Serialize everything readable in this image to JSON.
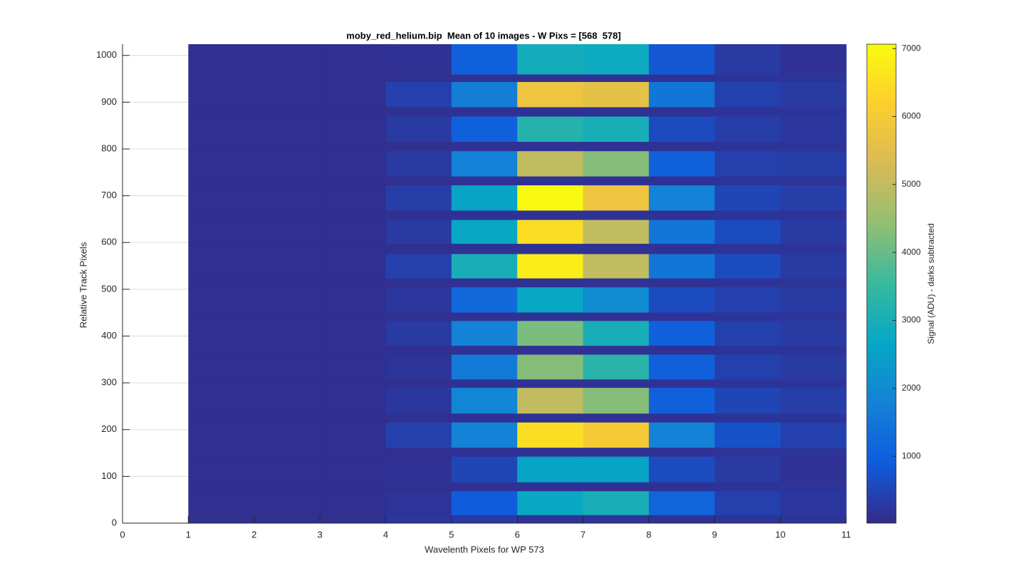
{
  "chart_data": {
    "type": "heatmap",
    "title": "moby_red_helium.bip  Mean of 10 images - W Pixs = [568  578]",
    "x_label": "Wavelenth Pixels for WP 573",
    "y_label": "Relative Track Pixels",
    "colorbar_label": "Signal (ADU) - darks subtracted",
    "xlim": [
      0,
      11
    ],
    "xticks": [
      0,
      1,
      2,
      3,
      4,
      5,
      6,
      7,
      8,
      9,
      10,
      11
    ],
    "ylim": [
      0,
      1024
    ],
    "yticks": [
      0,
      100,
      200,
      300,
      400,
      500,
      600,
      700,
      800,
      900,
      1000
    ],
    "grid": true,
    "x_edges": [
      1,
      2,
      3,
      4,
      5,
      6,
      7,
      8,
      9,
      10,
      11
    ],
    "y_edges": [
      0,
      18,
      69,
      88,
      143,
      162,
      216,
      235,
      290,
      308,
      361,
      380,
      433,
      451,
      505,
      524,
      576,
      598,
      649,
      669,
      723,
      742,
      796,
      816,
      870,
      890,
      944,
      960,
      1024
    ],
    "values": [
      [
        100,
        100,
        100,
        250,
        300,
        200,
        200,
        150,
        200,
        200
      ],
      [
        100,
        100,
        100,
        200,
        900,
        2700,
        3000,
        1100,
        400,
        250
      ],
      [
        100,
        100,
        100,
        120,
        150,
        150,
        150,
        150,
        200,
        200
      ],
      [
        100,
        100,
        100,
        150,
        500,
        2600,
        2600,
        600,
        300,
        150
      ],
      [
        100,
        100,
        100,
        120,
        150,
        150,
        150,
        150,
        200,
        200
      ],
      [
        100,
        100,
        100,
        400,
        1800,
        6500,
        6000,
        1800,
        700,
        400
      ],
      [
        100,
        100,
        100,
        120,
        150,
        150,
        150,
        150,
        200,
        200
      ],
      [
        100,
        100,
        100,
        250,
        1900,
        5000,
        4300,
        1000,
        500,
        350
      ],
      [
        100,
        100,
        100,
        120,
        150,
        150,
        150,
        150,
        200,
        200
      ],
      [
        100,
        100,
        100,
        200,
        1600,
        4300,
        3300,
        1000,
        400,
        300
      ],
      [
        100,
        100,
        100,
        120,
        150,
        150,
        150,
        150,
        200,
        200
      ],
      [
        100,
        100,
        100,
        300,
        1800,
        4200,
        3000,
        1000,
        400,
        300
      ],
      [
        100,
        100,
        100,
        120,
        150,
        150,
        150,
        150,
        200,
        200
      ],
      [
        100,
        100,
        100,
        250,
        1200,
        2700,
        2000,
        600,
        400,
        300
      ],
      [
        100,
        100,
        100,
        120,
        150,
        150,
        150,
        150,
        200,
        200
      ],
      [
        100,
        100,
        100,
        400,
        3000,
        6800,
        5000,
        1500,
        600,
        300
      ],
      [
        100,
        100,
        100,
        120,
        150,
        150,
        150,
        150,
        200,
        200
      ],
      [
        100,
        100,
        100,
        300,
        2700,
        6500,
        5000,
        1500,
        600,
        300
      ],
      [
        100,
        100,
        100,
        120,
        150,
        150,
        150,
        150,
        200,
        200
      ],
      [
        100,
        100,
        100,
        350,
        2600,
        7000,
        5800,
        1800,
        500,
        350
      ],
      [
        100,
        100,
        100,
        120,
        150,
        150,
        150,
        150,
        200,
        200
      ],
      [
        100,
        100,
        100,
        300,
        1800,
        5000,
        4300,
        1000,
        400,
        350
      ],
      [
        100,
        100,
        100,
        120,
        150,
        150,
        150,
        150,
        200,
        200
      ],
      [
        100,
        100,
        100,
        300,
        1000,
        3200,
        3000,
        600,
        350,
        250
      ],
      [
        100,
        100,
        100,
        120,
        150,
        150,
        150,
        150,
        200,
        200
      ],
      [
        100,
        100,
        100,
        400,
        1700,
        5800,
        5600,
        1500,
        400,
        300
      ],
      [
        100,
        100,
        100,
        120,
        150,
        150,
        150,
        150,
        200,
        200
      ],
      [
        100,
        100,
        100,
        150,
        1000,
        2900,
        2800,
        800,
        300,
        150
      ]
    ],
    "clim": [
      15,
      7065
    ],
    "cticks": [
      1000,
      2000,
      3000,
      4000,
      5000,
      6000,
      7000
    ],
    "colormap": [
      "#352A87",
      "#0F5CDD",
      "#1481D6",
      "#06A7C6",
      "#38B99E",
      "#92BF73",
      "#D9BA56",
      "#FCCE2E",
      "#F9FB0E"
    ]
  }
}
